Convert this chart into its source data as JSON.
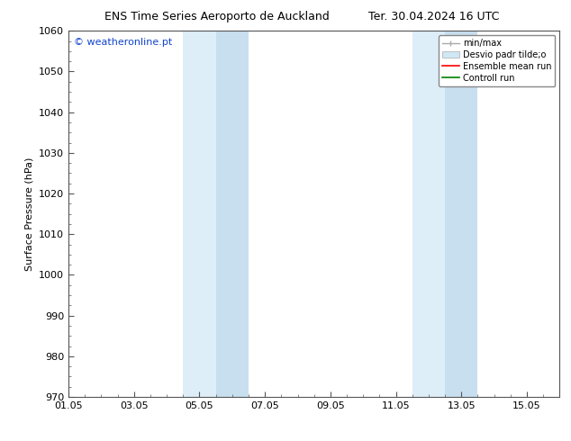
{
  "title_left": "ENS Time Series Aeroporto de Auckland",
  "title_right": "Ter. 30.04.2024 16 UTC",
  "ylabel": "Surface Pressure (hPa)",
  "ylim": [
    970,
    1060
  ],
  "yticks": [
    970,
    980,
    990,
    1000,
    1010,
    1020,
    1030,
    1040,
    1050,
    1060
  ],
  "xtick_labels": [
    "01.05",
    "03.05",
    "05.05",
    "07.05",
    "09.05",
    "11.05",
    "13.05",
    "15.05"
  ],
  "xtick_positions": [
    0,
    2,
    4,
    6,
    8,
    10,
    12,
    14
  ],
  "watermark": "© weatheronline.pt",
  "watermark_color": "#1144cc",
  "shade_bands": [
    {
      "x_start": 3.5,
      "x_end": 4.5,
      "color": "#ddeef8"
    },
    {
      "x_start": 4.5,
      "x_end": 5.5,
      "color": "#c8dff0"
    },
    {
      "x_start": 10.5,
      "x_end": 11.5,
      "color": "#ddeef8"
    },
    {
      "x_start": 11.5,
      "x_end": 12.5,
      "color": "#c8dff0"
    }
  ],
  "legend_labels": [
    "min/max",
    "Desvio padr tilde;o",
    "Ensemble mean run",
    "Controll run"
  ],
  "legend_colors_line": [
    "#aaaaaa",
    "#c8dff0",
    "#ff0000",
    "#008000"
  ],
  "background_color": "#ffffff",
  "grid_color": "#cccccc",
  "font_size_title": 9,
  "font_size_axis": 8,
  "font_size_legend": 7,
  "font_size_watermark": 8
}
